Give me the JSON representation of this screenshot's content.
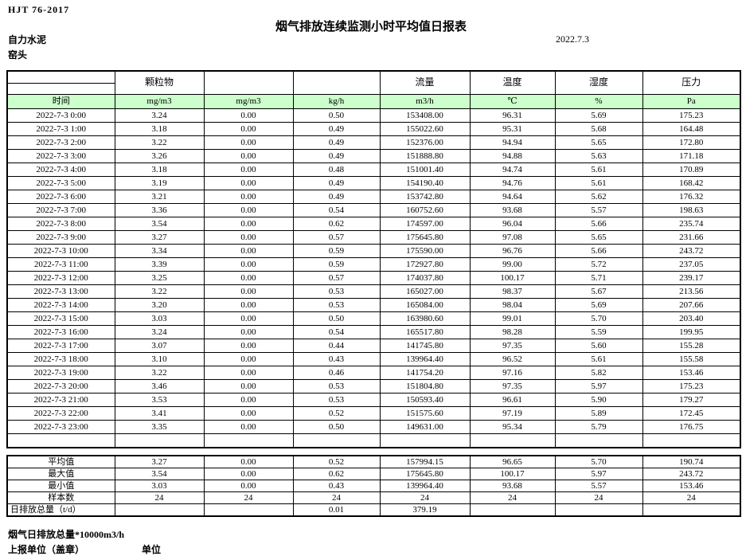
{
  "page": {
    "doc_code": "HJT  76-2017",
    "title": "烟气排放连续监测小时平均值日报表",
    "company": "自力水泥",
    "date": "2022.7.3",
    "location": "窑头"
  },
  "colors": {
    "unit_row_fill": "#ccffcc",
    "border": "#000000"
  },
  "table": {
    "group_headers": [
      "",
      "颗粒物",
      "",
      "",
      "流量",
      "温度",
      "湿度",
      "压力"
    ],
    "unit_row": [
      "时间",
      "mg/m3",
      "mg/m3",
      "kg/h",
      "m3/h",
      "℃",
      "%",
      "Pa"
    ],
    "rows": [
      [
        "2022-7-3 0:00",
        "3.24",
        "0.00",
        "0.50",
        "153408.00",
        "96.31",
        "5.69",
        "175.23"
      ],
      [
        "2022-7-3 1:00",
        "3.18",
        "0.00",
        "0.49",
        "155022.60",
        "95.31",
        "5.68",
        "164.48"
      ],
      [
        "2022-7-3 2:00",
        "3.22",
        "0.00",
        "0.49",
        "152376.00",
        "94.94",
        "5.65",
        "172.80"
      ],
      [
        "2022-7-3 3:00",
        "3.26",
        "0.00",
        "0.49",
        "151888.80",
        "94.88",
        "5.63",
        "171.18"
      ],
      [
        "2022-7-3 4:00",
        "3.18",
        "0.00",
        "0.48",
        "151001.40",
        "94.74",
        "5.61",
        "170.89"
      ],
      [
        "2022-7-3 5:00",
        "3.19",
        "0.00",
        "0.49",
        "154190.40",
        "94.76",
        "5.61",
        "168.42"
      ],
      [
        "2022-7-3 6:00",
        "3.21",
        "0.00",
        "0.49",
        "153742.80",
        "94.64",
        "5.62",
        "176.32"
      ],
      [
        "2022-7-3 7:00",
        "3.36",
        "0.00",
        "0.54",
        "160752.60",
        "93.68",
        "5.57",
        "198.63"
      ],
      [
        "2022-7-3 8:00",
        "3.54",
        "0.00",
        "0.62",
        "174597.00",
        "96.04",
        "5.66",
        "235.74"
      ],
      [
        "2022-7-3 9:00",
        "3.27",
        "0.00",
        "0.57",
        "175645.80",
        "97.08",
        "5.65",
        "231.66"
      ],
      [
        "2022-7-3 10:00",
        "3.34",
        "0.00",
        "0.59",
        "175590.00",
        "96.76",
        "5.66",
        "243.72"
      ],
      [
        "2022-7-3 11:00",
        "3.39",
        "0.00",
        "0.59",
        "172927.80",
        "99.00",
        "5.72",
        "237.05"
      ],
      [
        "2022-7-3 12:00",
        "3.25",
        "0.00",
        "0.57",
        "174037.80",
        "100.17",
        "5.71",
        "239.17"
      ],
      [
        "2022-7-3 13:00",
        "3.22",
        "0.00",
        "0.53",
        "165027.00",
        "98.37",
        "5.67",
        "213.56"
      ],
      [
        "2022-7-3 14:00",
        "3.20",
        "0.00",
        "0.53",
        "165084.00",
        "98.04",
        "5.69",
        "207.66"
      ],
      [
        "2022-7-3 15:00",
        "3.03",
        "0.00",
        "0.50",
        "163980.60",
        "99.01",
        "5.70",
        "203.40"
      ],
      [
        "2022-7-3 16:00",
        "3.24",
        "0.00",
        "0.54",
        "165517.80",
        "98.28",
        "5.59",
        "199.95"
      ],
      [
        "2022-7-3 17:00",
        "3.07",
        "0.00",
        "0.44",
        "141745.80",
        "97.35",
        "5.60",
        "155.28"
      ],
      [
        "2022-7-3 18:00",
        "3.10",
        "0.00",
        "0.43",
        "139964.40",
        "96.52",
        "5.61",
        "155.58"
      ],
      [
        "2022-7-3 19:00",
        "3.22",
        "0.00",
        "0.46",
        "141754.20",
        "97.16",
        "5.82",
        "153.46"
      ],
      [
        "2022-7-3 20:00",
        "3.46",
        "0.00",
        "0.53",
        "151804.80",
        "97.35",
        "5.97",
        "175.23"
      ],
      [
        "2022-7-3 21:00",
        "3.53",
        "0.00",
        "0.53",
        "150593.40",
        "96.61",
        "5.90",
        "179.27"
      ],
      [
        "2022-7-3 22:00",
        "3.41",
        "0.00",
        "0.52",
        "151575.60",
        "97.19",
        "5.89",
        "172.45"
      ],
      [
        "2022-7-3 23:00",
        "3.35",
        "0.00",
        "0.50",
        "149631.00",
        "95.34",
        "5.79",
        "176.75"
      ]
    ],
    "trailing_empty_row": [
      "",
      "",
      "",
      "",
      "",
      "",
      "",
      ""
    ],
    "summary": [
      [
        "平均值",
        "3.27",
        "0.00",
        "0.52",
        "157994.15",
        "96.65",
        "5.70",
        "190.74"
      ],
      [
        "最大值",
        "3.54",
        "0.00",
        "0.62",
        "175645.80",
        "100.17",
        "5.97",
        "243.72"
      ],
      [
        "最小值",
        "3.03",
        "0.00",
        "0.43",
        "139964.40",
        "93.68",
        "5.57",
        "153.46"
      ],
      [
        "样本数",
        "24",
        "24",
        "24",
        "24",
        "24",
        "24",
        "24"
      ],
      [
        "日排放总量（t/d）",
        "",
        "",
        "0.01",
        "379.19",
        "",
        "",
        ""
      ]
    ]
  },
  "footer": {
    "note": "烟气日排放总量*10000m3/h",
    "report_unit_label": "上报单位（盖章）",
    "unit_label": "单位"
  }
}
